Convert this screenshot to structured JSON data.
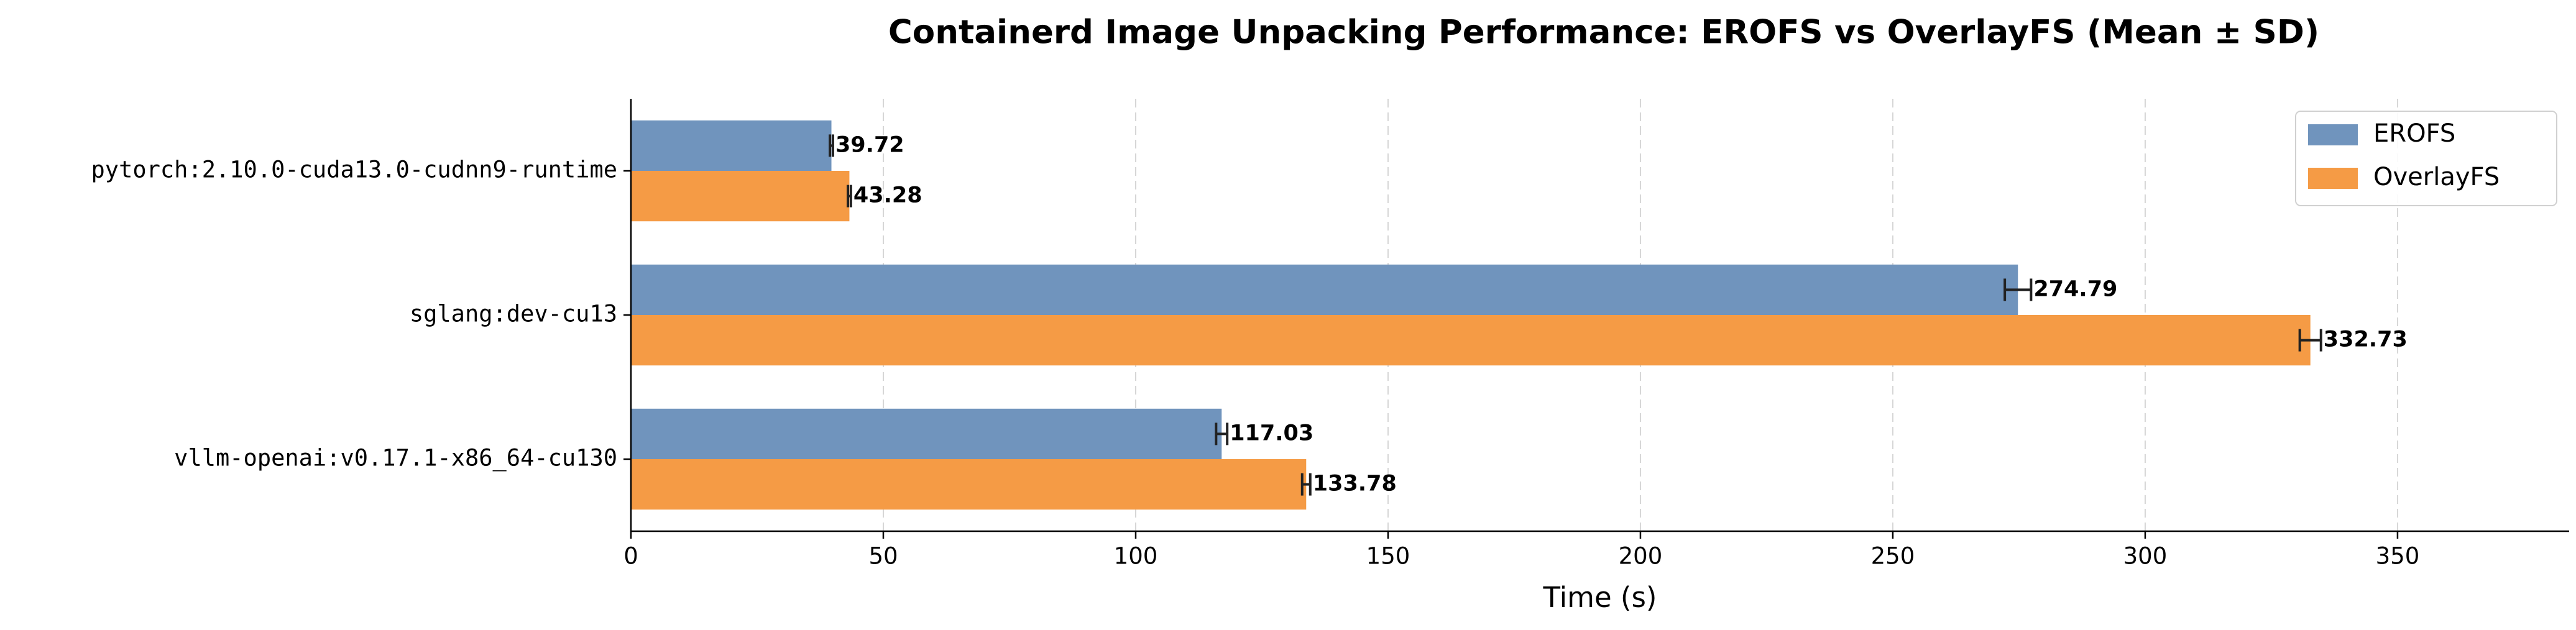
{
  "chart_data": {
    "type": "bar",
    "orientation": "horizontal",
    "title": "Containerd Image Unpacking Performance: EROFS vs OverlayFS (Mean ± SD)",
    "xlabel": "Time (s)",
    "categories": [
      "pytorch:2.10.0-cuda13.0-cudnn9-runtime",
      "sglang:dev-cu13",
      "vllm-openai:v0.17.1-x86_64-cu130"
    ],
    "series": [
      {
        "name": "EROFS",
        "color": "#7094bd",
        "values": [
          39.72,
          274.79,
          117.03
        ],
        "errors": [
          0.3,
          2.6,
          1.1
        ]
      },
      {
        "name": "OverlayFS",
        "color": "#f59b45",
        "values": [
          43.28,
          332.73,
          133.78
        ],
        "errors": [
          0.3,
          2.1,
          0.8
        ]
      }
    ],
    "xlim": [
      0,
      384
    ],
    "xticks": [
      0,
      50,
      100,
      150,
      200,
      250,
      300,
      350
    ],
    "grid": true,
    "legend": "upper right"
  }
}
